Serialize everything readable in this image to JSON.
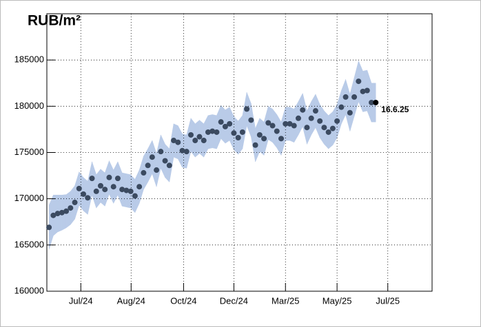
{
  "chart_data": {
    "type": "scatter",
    "title": "RUB/m²",
    "annotation": "16.6.25",
    "annotation_color": "#e8151b",
    "band_color": "#b9cbe8",
    "point_color": "#3b4a60",
    "last_point_color": "#000000",
    "grid": true,
    "xlim": [
      -0.5,
      89.1
    ],
    "ylim": [
      160000,
      190000
    ],
    "yticks": [
      160000,
      165000,
      170000,
      175000,
      180000,
      185000
    ],
    "xticks": [
      {
        "value": 7.4,
        "label": "Jul/24"
      },
      {
        "value": 19.1,
        "label": "Aug/24"
      },
      {
        "value": 31.3,
        "label": "Oct/24"
      },
      {
        "value": 43.0,
        "label": "Dec/24"
      },
      {
        "value": 55.0,
        "label": "Mar/25"
      },
      {
        "value": 67.0,
        "label": "May/25"
      },
      {
        "value": 78.8,
        "label": "Jul/25"
      }
    ],
    "x": [
      0,
      1,
      2,
      3,
      4,
      5,
      6,
      7,
      8,
      9,
      10,
      11,
      12,
      13,
      14,
      15,
      16,
      17,
      18,
      19,
      20,
      21,
      22,
      23,
      24,
      25,
      26,
      27,
      28,
      29,
      30,
      31,
      32,
      33,
      34,
      35,
      36,
      37,
      38,
      39,
      40,
      41,
      42,
      43,
      44,
      45,
      46,
      47,
      48,
      49,
      50,
      51,
      52,
      53,
      54,
      55,
      56,
      57,
      58,
      59,
      60,
      61,
      62,
      63,
      64,
      65,
      66,
      67,
      68,
      69,
      70,
      71,
      72,
      73,
      74,
      75,
      76
    ],
    "series": [
      {
        "values": [
          166900,
          168200,
          168400,
          168500,
          168650,
          169000,
          169600,
          171100,
          170500,
          170100,
          172200,
          170800,
          171400,
          171000,
          172300,
          171300,
          172200,
          171000,
          170900,
          170800,
          170300,
          171300,
          172800,
          173600,
          174500,
          173100,
          175100,
          174100,
          173600,
          176300,
          176100,
          175200,
          175100,
          176900,
          176300,
          176700,
          176300,
          177200,
          177300,
          177200,
          178300,
          177800,
          178100,
          177100,
          176600,
          177200,
          179700,
          178500,
          175800,
          176900,
          176500,
          178200,
          177900,
          177300,
          176500,
          178100,
          178100,
          177900,
          178700,
          179600,
          177700,
          178700,
          179500,
          178400,
          177700,
          177200,
          177600,
          178400,
          179900,
          181000,
          179300,
          181000,
          182700,
          181600,
          181700,
          180400,
          180400
        ],
        "errors": [
          2400,
          2200,
          2000,
          1900,
          1800,
          1800,
          1800,
          1800,
          1800,
          1800,
          1800,
          1800,
          1800,
          1800,
          1800,
          1800,
          1800,
          1800,
          1800,
          1800,
          1800,
          1800,
          1800,
          1800,
          1800,
          1800,
          1800,
          1800,
          1800,
          1800,
          1800,
          1800,
          1800,
          1800,
          1800,
          1800,
          1800,
          1800,
          1800,
          1800,
          1800,
          1800,
          1800,
          1800,
          1800,
          1800,
          1800,
          1800,
          1800,
          1800,
          1800,
          1800,
          1800,
          1800,
          1800,
          1800,
          1800,
          1800,
          1800,
          1800,
          1800,
          1800,
          1800,
          1800,
          1800,
          1800,
          1800,
          1800,
          1800,
          1900,
          2000,
          2100,
          2200,
          2200,
          2200,
          2100,
          2100
        ]
      }
    ]
  }
}
